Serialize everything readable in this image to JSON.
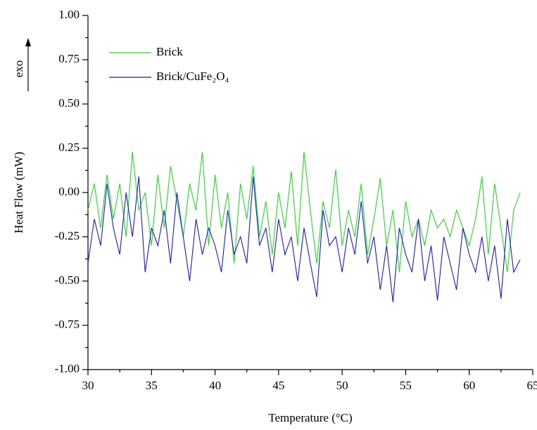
{
  "chart_data": {
    "type": "line",
    "xlabel": "Temperature (°C)",
    "ylabel": "Heat Flow (mW)",
    "annotation": "exo",
    "x": [
      30,
      30.5,
      31,
      31.5,
      32,
      32.5,
      33,
      33.5,
      34,
      34.5,
      35,
      35.5,
      36,
      36.5,
      37,
      37.5,
      38,
      38.5,
      39,
      39.5,
      40,
      40.5,
      41,
      41.5,
      42,
      42.5,
      43,
      43.5,
      44,
      44.5,
      45,
      45.5,
      46,
      46.5,
      47,
      47.5,
      48,
      48.5,
      49,
      49.5,
      50,
      50.5,
      51,
      51.5,
      52,
      52.5,
      53,
      53.5,
      54,
      54.5,
      55,
      55.5,
      56,
      56.5,
      57,
      57.5,
      58,
      58.5,
      59,
      59.5,
      60,
      60.5,
      61,
      61.5,
      62,
      62.5,
      63,
      63.5,
      64
    ],
    "series": [
      {
        "name": "Brick",
        "color": "#22dd22",
        "values": [
          -0.1,
          0.05,
          -0.2,
          0.1,
          -0.15,
          0.05,
          -0.25,
          0.23,
          -0.1,
          0.0,
          -0.3,
          0.1,
          -0.2,
          0.15,
          -0.05,
          -0.25,
          0.05,
          -0.1,
          0.23,
          -0.3,
          0.1,
          -0.2,
          0.0,
          -0.4,
          0.05,
          -0.15,
          0.15,
          -0.25,
          -0.05,
          -0.35,
          0.0,
          -0.2,
          0.12,
          -0.3,
          0.23,
          -0.1,
          -0.4,
          -0.05,
          -0.2,
          0.13,
          -0.3,
          -0.1,
          -0.25,
          0.05,
          -0.35,
          -0.15,
          0.08,
          -0.3,
          -0.1,
          -0.45,
          -0.05,
          -0.25,
          -0.15,
          -0.3,
          -0.1,
          -0.2,
          -0.15,
          -0.25,
          -0.1,
          -0.2,
          -0.3,
          -0.15,
          0.09,
          -0.35,
          0.05,
          -0.2,
          -0.45,
          -0.1,
          0.0
        ]
      },
      {
        "name": "Brick/CuFe₂O₄",
        "color": "#1a1acc",
        "values": [
          -0.4,
          -0.15,
          -0.3,
          0.05,
          -0.2,
          -0.35,
          0.0,
          -0.25,
          0.09,
          -0.45,
          -0.2,
          -0.3,
          -0.1,
          -0.4,
          0.0,
          -0.25,
          -0.5,
          -0.15,
          -0.35,
          -0.2,
          -0.3,
          -0.45,
          -0.1,
          -0.35,
          -0.25,
          -0.4,
          0.09,
          -0.3,
          -0.2,
          -0.45,
          -0.15,
          -0.35,
          -0.25,
          -0.5,
          -0.2,
          -0.4,
          -0.59,
          -0.1,
          -0.3,
          -0.25,
          -0.45,
          -0.2,
          -0.35,
          -0.05,
          -0.4,
          -0.25,
          -0.55,
          -0.3,
          -0.62,
          -0.2,
          -0.35,
          -0.45,
          -0.15,
          -0.5,
          -0.3,
          -0.61,
          -0.25,
          -0.4,
          -0.55,
          -0.2,
          -0.35,
          -0.45,
          -0.25,
          -0.5,
          -0.3,
          -0.6,
          -0.15,
          -0.45,
          -0.38
        ]
      }
    ],
    "xlim": [
      30,
      65
    ],
    "xticks": [
      30,
      35,
      40,
      45,
      50,
      55,
      60,
      65
    ],
    "ylim": [
      -1,
      1
    ],
    "yticks": [
      {
        "value": -1,
        "label": "-1.00"
      },
      {
        "value": -0.75,
        "label": "-0.75"
      },
      {
        "value": -0.5,
        "label": "-0.50"
      },
      {
        "value": -0.25,
        "label": "-0.25"
      },
      {
        "value": 0,
        "label": "0.00"
      },
      {
        "value": 0.25,
        "label": "0.25"
      },
      {
        "value": 0.5,
        "label": "0.50"
      },
      {
        "value": 0.75,
        "label": "0.75"
      },
      {
        "value": 1,
        "label": "1.00"
      }
    ],
    "legend": "upper-left",
    "grid": false
  }
}
